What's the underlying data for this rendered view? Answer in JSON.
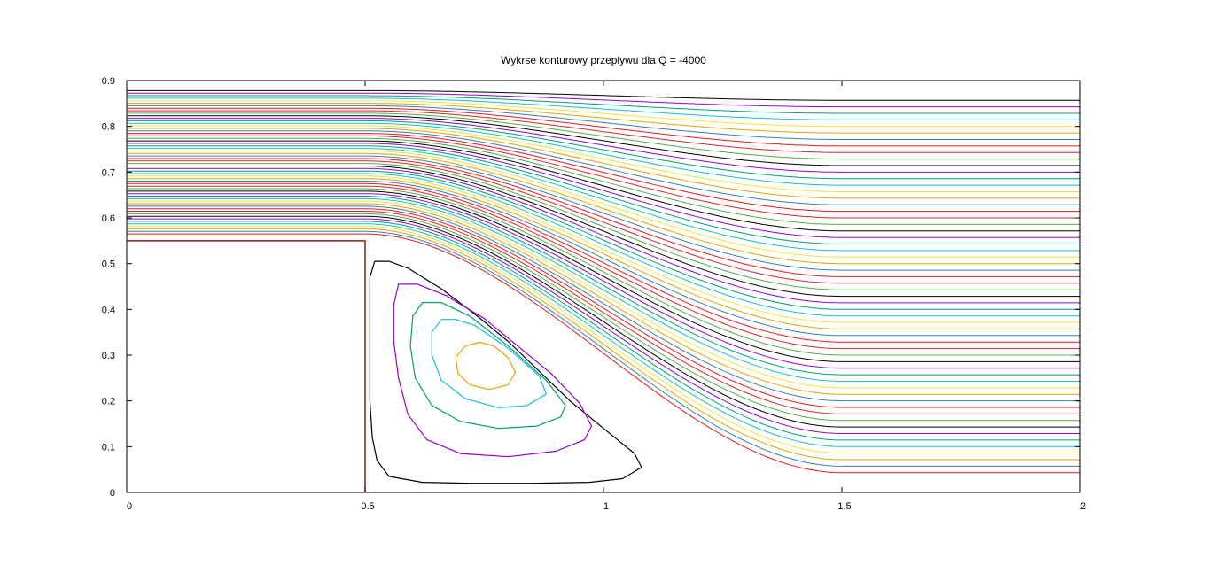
{
  "chart_data": {
    "type": "contour",
    "title": "Wykrse konturowy przepływu dla Q = -4000",
    "xlabel": "",
    "ylabel": "",
    "xlim": [
      0,
      2
    ],
    "ylim": [
      0,
      0.9
    ],
    "xticks": [
      0,
      0.5,
      1,
      1.5,
      2
    ],
    "xtick_labels": [
      "0",
      "0.5",
      "1",
      "1.5",
      "2"
    ],
    "yticks": [
      0,
      0.1,
      0.2,
      0.3,
      0.4,
      0.5,
      0.6,
      0.7,
      0.8,
      0.9
    ],
    "ytick_labels": [
      "0",
      "0.1",
      "0.2",
      "0.3",
      "0.4",
      "0.5",
      "0.6",
      "0.7",
      "0.8",
      "0.9"
    ],
    "grid": false,
    "legend": "none",
    "obstacle": {
      "x": [
        0,
        0.5
      ],
      "y": [
        0,
        0.55
      ]
    },
    "palette": [
      "#e41a1c",
      "#377eb8",
      "#e6a100",
      "#f0e442",
      "#17becf",
      "#009e73",
      "#9400d3",
      "#000000",
      "#4daf4a",
      "#d62728"
    ],
    "streamlines": {
      "count": 58,
      "inlet_y_range": [
        0.565,
        0.878
      ],
      "outlet_y_range": [
        0.043,
        0.857
      ],
      "transition_x_range": [
        0.5,
        1.5
      ]
    },
    "vortex": {
      "center": [
        0.745,
        0.268
      ],
      "contours": [
        {
          "color": "#000000",
          "points": [
            [
              0.52,
              0.505
            ],
            [
              0.51,
              0.47
            ],
            [
              0.51,
              0.4
            ],
            [
              0.51,
              0.3
            ],
            [
              0.51,
              0.2
            ],
            [
              0.515,
              0.12
            ],
            [
              0.525,
              0.07
            ],
            [
              0.55,
              0.035
            ],
            [
              0.62,
              0.022
            ],
            [
              0.72,
              0.02
            ],
            [
              0.85,
              0.02
            ],
            [
              0.97,
              0.022
            ],
            [
              1.04,
              0.03
            ],
            [
              1.08,
              0.055
            ],
            [
              1.065,
              0.085
            ],
            [
              1.0,
              0.14
            ],
            [
              0.93,
              0.2
            ],
            [
              0.86,
              0.27
            ],
            [
              0.8,
              0.33
            ],
            [
              0.73,
              0.39
            ],
            [
              0.66,
              0.445
            ],
            [
              0.59,
              0.49
            ],
            [
              0.55,
              0.505
            ]
          ]
        },
        {
          "color": "#9400d3",
          "points": [
            [
              0.57,
              0.455
            ],
            [
              0.56,
              0.41
            ],
            [
              0.56,
              0.33
            ],
            [
              0.57,
              0.25
            ],
            [
              0.59,
              0.17
            ],
            [
              0.63,
              0.115
            ],
            [
              0.7,
              0.085
            ],
            [
              0.8,
              0.078
            ],
            [
              0.9,
              0.09
            ],
            [
              0.96,
              0.115
            ],
            [
              0.975,
              0.145
            ],
            [
              0.95,
              0.195
            ],
            [
              0.89,
              0.26
            ],
            [
              0.82,
              0.32
            ],
            [
              0.75,
              0.38
            ],
            [
              0.67,
              0.43
            ],
            [
              0.61,
              0.455
            ]
          ]
        },
        {
          "color": "#009e73",
          "points": [
            [
              0.62,
              0.415
            ],
            [
              0.6,
              0.385
            ],
            [
              0.595,
              0.32
            ],
            [
              0.605,
              0.25
            ],
            [
              0.64,
              0.19
            ],
            [
              0.7,
              0.155
            ],
            [
              0.78,
              0.14
            ],
            [
              0.86,
              0.145
            ],
            [
              0.91,
              0.165
            ],
            [
              0.92,
              0.19
            ],
            [
              0.88,
              0.245
            ],
            [
              0.8,
              0.32
            ],
            [
              0.72,
              0.385
            ],
            [
              0.66,
              0.415
            ]
          ]
        },
        {
          "color": "#17becf",
          "points": [
            [
              0.66,
              0.378
            ],
            [
              0.64,
              0.35
            ],
            [
              0.64,
              0.3
            ],
            [
              0.66,
              0.245
            ],
            [
              0.71,
              0.205
            ],
            [
              0.78,
              0.185
            ],
            [
              0.84,
              0.19
            ],
            [
              0.88,
              0.215
            ],
            [
              0.865,
              0.255
            ],
            [
              0.8,
              0.315
            ],
            [
              0.73,
              0.365
            ],
            [
              0.69,
              0.378
            ]
          ]
        },
        {
          "color": "#e6a100",
          "points": [
            [
              0.74,
              0.328
            ],
            [
              0.71,
              0.32
            ],
            [
              0.69,
              0.295
            ],
            [
              0.695,
              0.26
            ],
            [
              0.72,
              0.235
            ],
            [
              0.76,
              0.225
            ],
            [
              0.8,
              0.235
            ],
            [
              0.815,
              0.262
            ],
            [
              0.8,
              0.295
            ],
            [
              0.77,
              0.32
            ]
          ]
        }
      ]
    }
  }
}
